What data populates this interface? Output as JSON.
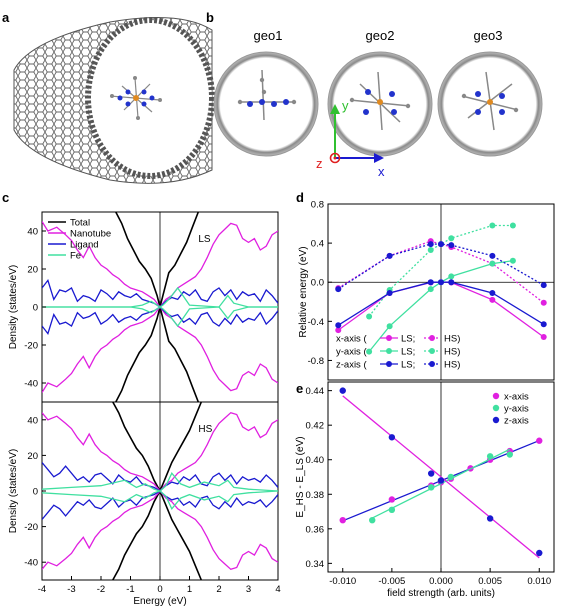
{
  "panels": {
    "a": "a",
    "b": "b",
    "c": "c",
    "d": "d",
    "e": "e"
  },
  "geometry_labels": [
    "geo1",
    "geo2",
    "geo3"
  ],
  "axes_triad": {
    "y": "y",
    "z": "z",
    "x": "x"
  },
  "colors": {
    "total": "#000000",
    "nanotube": "#e020e0",
    "ligand": "#1a1ad0",
    "fe": "#40e0a0",
    "x_axis": "#e020e0",
    "y_axis": "#40e0a0",
    "z_axis": "#1a1ad0",
    "tube_gray": "#777777",
    "triad_y": "#30c030",
    "triad_z": "#e02020",
    "triad_x": "#1a1ad0"
  },
  "chart_data": [
    {
      "id": "c-LS",
      "type": "line",
      "state_label": "LS",
      "ylabel": "Density (states/eV)",
      "xlim": [
        -4,
        4
      ],
      "ylim": [
        -50,
        50
      ],
      "yticks": [
        "40",
        "20",
        "0",
        "-20",
        "-40"
      ],
      "legend": [
        "Total",
        "Nanotube",
        "Ligand",
        "Fe"
      ],
      "series": [
        {
          "name": "Total",
          "x": [
            -1.5,
            -1.3,
            -1.1,
            -0.9,
            -0.7,
            -0.5,
            -0.3,
            -0.1,
            0,
            0.1,
            0.3,
            0.5,
            0.7,
            0.9,
            1.1,
            1.3
          ],
          "y": [
            50,
            44,
            36,
            30,
            24,
            20,
            15,
            6,
            0,
            6,
            18,
            22,
            28,
            34,
            42,
            50
          ]
        },
        {
          "name": "Nanotube",
          "x": [
            -4,
            -3.8,
            -3.5,
            -3.2,
            -3,
            -2.8,
            -2.6,
            -2.4,
            -2.2,
            -2,
            -1.8,
            -1.6,
            -1.4,
            -1.2,
            -1,
            -0.8,
            -0.6,
            -0.4,
            -0.2,
            0,
            0.2,
            0.4,
            0.6,
            0.8,
            1,
            1.2,
            1.4,
            1.6,
            1.8,
            2,
            2.2,
            2.4,
            2.6,
            2.8,
            3,
            3.2,
            3.4,
            3.6,
            3.8,
            4
          ],
          "y": [
            45,
            40,
            42,
            38,
            35,
            30,
            26,
            32,
            26,
            22,
            20,
            17,
            15,
            12,
            10,
            9,
            8,
            6,
            4,
            0,
            4,
            6,
            10,
            12,
            14,
            16,
            20,
            26,
            33,
            38,
            41,
            44,
            43,
            36,
            34,
            36,
            30,
            32,
            38,
            40
          ]
        },
        {
          "name": "Ligand",
          "x": [
            -4,
            -3.8,
            -3.6,
            -3.4,
            -3.2,
            -3,
            -2.8,
            -2.6,
            -2.4,
            -2.2,
            -2,
            -1.8,
            -1.6,
            -1.4,
            -1.2,
            -1,
            -0.8,
            -0.6,
            -0.4,
            -0.2,
            0,
            0.2,
            0.4,
            0.6,
            0.8,
            1,
            1.2,
            1.4,
            1.6,
            1.8,
            2,
            2.2,
            2.4,
            2.6,
            2.8,
            3,
            3.2,
            3.4,
            3.6,
            3.8,
            4
          ],
          "y": [
            10,
            14,
            4,
            9,
            8,
            10,
            3,
            6,
            5,
            3,
            9,
            7,
            4,
            8,
            6,
            5,
            7,
            4,
            3,
            2,
            0,
            3,
            5,
            4,
            8,
            6,
            9,
            4,
            3,
            8,
            10,
            6,
            9,
            4,
            8,
            6,
            7,
            3,
            9,
            6,
            2
          ]
        },
        {
          "name": "Fe",
          "x": [
            -4,
            -3,
            -2,
            -1,
            -0.6,
            -0.3,
            -0.1,
            0,
            0.1,
            0.3,
            0.6,
            1,
            2,
            2.3,
            2.5,
            3,
            4
          ],
          "y": [
            0,
            0,
            0,
            0,
            1,
            3,
            1,
            0,
            1,
            4,
            10,
            1,
            0,
            6,
            2,
            0,
            0
          ]
        }
      ]
    },
    {
      "id": "c-HS",
      "type": "line",
      "state_label": "HS",
      "ylabel": "Density (states/eV)",
      "xlabel": "Energy (eV)",
      "xlim": [
        -4,
        4
      ],
      "ylim": [
        -50,
        50
      ],
      "xticks": [
        "-4",
        "-3",
        "-2",
        "-1",
        "0",
        "1",
        "2",
        "3",
        "4"
      ],
      "yticks": [
        "40",
        "20",
        "0",
        "-20",
        "-40"
      ],
      "series": [
        {
          "name": "Total",
          "x": [
            -1.6,
            -1.4,
            -1.2,
            -1,
            -0.8,
            -0.6,
            -0.4,
            -0.2,
            0,
            0.2,
            0.4,
            0.6,
            0.8,
            1,
            1.2,
            1.4
          ],
          "y": [
            50,
            44,
            36,
            30,
            24,
            20,
            14,
            6,
            0,
            8,
            16,
            22,
            28,
            34,
            42,
            50
          ]
        },
        {
          "name": "Nanotube",
          "x": [
            -4,
            -3.8,
            -3.5,
            -3.2,
            -3,
            -2.8,
            -2.6,
            -2.4,
            -2.2,
            -2,
            -1.8,
            -1.6,
            -1.4,
            -1.2,
            -1,
            -0.8,
            -0.6,
            -0.4,
            -0.2,
            0,
            0.2,
            0.4,
            0.6,
            0.8,
            1,
            1.2,
            1.4,
            1.6,
            1.8,
            2,
            2.2,
            2.4,
            2.6,
            2.8,
            3,
            3.2,
            3.4,
            3.6,
            3.8,
            4
          ],
          "y": [
            44,
            40,
            42,
            38,
            35,
            30,
            26,
            32,
            26,
            22,
            20,
            17,
            15,
            12,
            10,
            9,
            8,
            6,
            4,
            0,
            4,
            6,
            10,
            12,
            14,
            16,
            20,
            26,
            33,
            38,
            41,
            44,
            43,
            36,
            34,
            36,
            30,
            32,
            38,
            40
          ]
        },
        {
          "name": "Ligand",
          "x": [
            -4,
            -3.8,
            -3.6,
            -3.4,
            -3.2,
            -3,
            -2.8,
            -2.6,
            -2.4,
            -2.2,
            -2,
            -1.8,
            -1.6,
            -1.4,
            -1.2,
            -1,
            -0.8,
            -0.6,
            -0.4,
            -0.2,
            0,
            0.2,
            0.4,
            0.6,
            0.8,
            1,
            1.2,
            1.4,
            1.6,
            1.8,
            2,
            2.2,
            2.4,
            2.6,
            2.8,
            3,
            3.2,
            3.4,
            3.6,
            3.8,
            4
          ],
          "y": [
            16,
            12,
            8,
            10,
            14,
            10,
            6,
            8,
            5,
            9,
            10,
            7,
            4,
            9,
            6,
            5,
            8,
            4,
            3,
            2,
            0,
            3,
            5,
            4,
            8,
            6,
            9,
            4,
            3,
            8,
            10,
            6,
            9,
            4,
            8,
            6,
            7,
            5,
            9,
            6,
            2
          ]
        },
        {
          "name": "Fe",
          "x": [
            -4,
            -3,
            -2,
            -1.2,
            -0.8,
            -0.5,
            -0.2,
            0,
            0.2,
            0.4,
            0.7,
            1,
            1.5,
            2,
            2.3,
            2.5,
            3,
            4
          ],
          "y": [
            1,
            2,
            3,
            6,
            2,
            4,
            1,
            0,
            3,
            10,
            4,
            2,
            5,
            3,
            6,
            2,
            1,
            0
          ]
        }
      ]
    },
    {
      "id": "d",
      "type": "line",
      "ylabel": "Relative energy (eV)",
      "xlim": [
        -0.011,
        0.011
      ],
      "ylim": [
        -1.0,
        0.8
      ],
      "yticks": [
        "0.8",
        "0.4",
        "0.0",
        "-0.4",
        "-0.8"
      ],
      "legend": [
        {
          "axis": "x-axis (",
          "ls": "LS",
          "hs": "HS)"
        },
        {
          "axis": "y-axis (",
          "ls": "LS",
          "hs": "HS)"
        },
        {
          "axis": "z-axis (",
          "ls": "LS",
          "hs": "HS)"
        }
      ],
      "series": [
        {
          "name": "x-axis LS",
          "x": [
            -0.01,
            -0.005,
            -0.001,
            0,
            0.001,
            0.005,
            0.01
          ],
          "y": [
            -0.49,
            -0.11,
            -0.003,
            0,
            -0.003,
            -0.18,
            -0.56
          ]
        },
        {
          "name": "x-axis HS",
          "x": [
            -0.01,
            -0.005,
            -0.001,
            0,
            0.001,
            0.005,
            0.01
          ],
          "y": [
            -0.06,
            0.27,
            0.42,
            0.39,
            0.36,
            0.19,
            -0.21
          ]
        },
        {
          "name": "y-axis LS",
          "x": [
            -0.007,
            -0.005,
            -0.001,
            0,
            0.001,
            0.005,
            0.007
          ],
          "y": [
            -0.71,
            -0.45,
            -0.07,
            0,
            0.06,
            0.19,
            0.22
          ]
        },
        {
          "name": "y-axis HS",
          "x": [
            -0.007,
            -0.005,
            -0.001,
            0,
            0.001,
            0.005,
            0.007
          ],
          "y": [
            -0.35,
            -0.08,
            0.33,
            0.39,
            0.45,
            0.58,
            0.58
          ]
        },
        {
          "name": "z-axis LS",
          "x": [
            -0.01,
            -0.005,
            -0.001,
            0,
            0.001,
            0.005,
            0.01
          ],
          "y": [
            -0.44,
            -0.11,
            0.0,
            0,
            0.0,
            -0.11,
            -0.43
          ]
        },
        {
          "name": "z-axis HS",
          "x": [
            -0.01,
            -0.005,
            -0.001,
            0,
            0.001,
            0.005,
            0.01
          ],
          "y": [
            -0.07,
            0.27,
            0.39,
            0.39,
            0.38,
            0.27,
            -0.03
          ]
        }
      ]
    },
    {
      "id": "e",
      "type": "scatter",
      "ylabel": "E_HS - E_LS (eV)",
      "xlabel": "field strength (arb. units)",
      "xlim": [
        -0.0115,
        0.0115
      ],
      "ylim": [
        0.335,
        0.445
      ],
      "xticks": [
        "-0.010",
        "-0.005",
        "0.000",
        "0.005",
        "0.010"
      ],
      "yticks": [
        "0.44",
        "0.42",
        "0.40",
        "0.38",
        "0.36",
        "0.34"
      ],
      "legend": [
        "x-axis",
        "y-axis",
        "z-axis"
      ],
      "series": [
        {
          "name": "x-axis",
          "x": [
            -0.01,
            -0.005,
            -0.001,
            0,
            0.001,
            0.003,
            0.005,
            0.007,
            0.01
          ],
          "y": [
            0.365,
            0.377,
            0.385,
            0.387,
            0.389,
            0.395,
            0.4,
            0.405,
            0.411
          ]
        },
        {
          "name": "y-axis",
          "x": [
            -0.007,
            -0.005,
            -0.001,
            0,
            0.001,
            0.005,
            0.007
          ],
          "y": [
            0.365,
            0.371,
            0.384,
            0.388,
            0.39,
            0.402,
            0.403
          ]
        },
        {
          "name": "z-axis",
          "x": [
            -0.01,
            -0.005,
            -0.001,
            0,
            0.005,
            0.01
          ],
          "y": [
            0.44,
            0.413,
            0.392,
            0.388,
            0.366,
            0.346
          ]
        }
      ]
    }
  ]
}
